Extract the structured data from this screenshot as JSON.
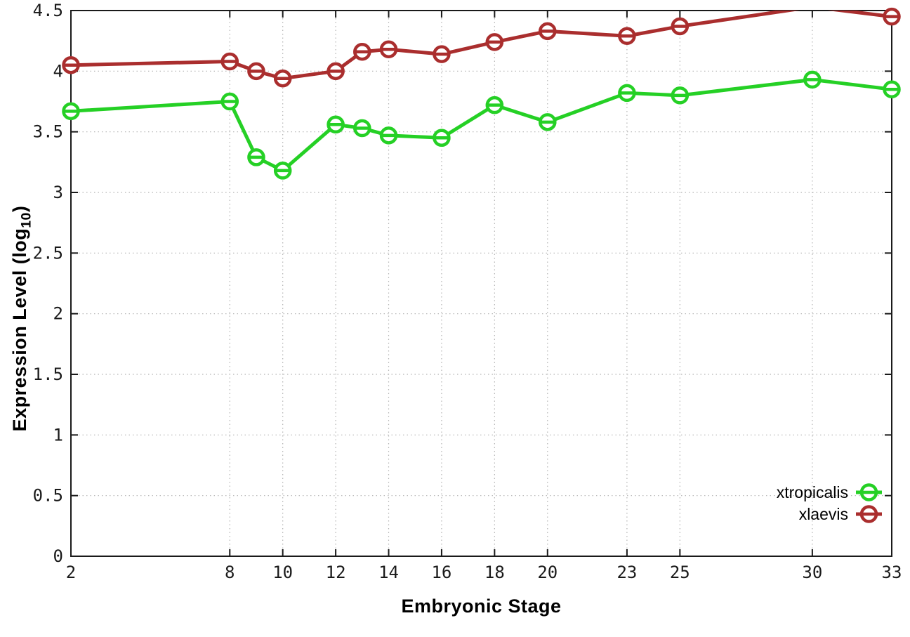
{
  "chart_data": {
    "type": "line",
    "title": "",
    "xlabel": "Embryonic Stage",
    "ylabel": {
      "main": "Expression Level (log",
      "sub": "10",
      "end": ")"
    },
    "xlim": [
      2,
      33
    ],
    "ylim": [
      0,
      4.5
    ],
    "grid": true,
    "legend_position": "inside-bottom-right",
    "x_ticks": [
      2,
      8,
      10,
      12,
      14,
      16,
      18,
      20,
      23,
      25,
      30,
      33
    ],
    "x_tick_labels": [
      "2",
      "8",
      "10",
      "12",
      "14",
      "16",
      "18",
      "20",
      "23",
      "25",
      "30",
      "33"
    ],
    "y_ticks": [
      0,
      0.5,
      1,
      1.5,
      2,
      2.5,
      3,
      3.5,
      4,
      4.5
    ],
    "y_tick_labels": [
      "0",
      "0.5",
      "1",
      "1.5",
      "2",
      "2.5",
      "3",
      "3.5",
      "4",
      "4.5"
    ],
    "x": [
      2,
      8,
      9,
      10,
      12,
      13,
      14,
      16,
      18,
      20,
      23,
      25,
      30,
      33
    ],
    "series": [
      {
        "name": "xtropicalis",
        "color": "#25d025",
        "marker": "open-circle-hbar",
        "values": [
          3.67,
          3.75,
          3.29,
          3.18,
          3.56,
          3.53,
          3.47,
          3.45,
          3.72,
          3.58,
          3.82,
          3.8,
          3.93,
          3.85
        ]
      },
      {
        "name": "xlaevis",
        "color": "#aa2e2e",
        "marker": "open-circle-hbar",
        "values": [
          4.05,
          4.08,
          4.0,
          3.94,
          4.0,
          4.16,
          4.18,
          4.14,
          4.24,
          4.33,
          4.29,
          4.37,
          4.53,
          4.45
        ]
      }
    ],
    "colors": {
      "background": "#ffffff",
      "grid": "#b3b3b3",
      "axis": "#1a1a1a",
      "tick_text": "#1a1a1a"
    }
  }
}
